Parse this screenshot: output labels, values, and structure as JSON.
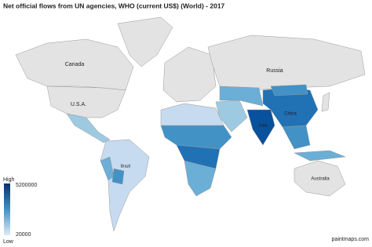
{
  "header": {
    "title": "Net official flows from UN agencies, WHO (current US$) (World) - 2017"
  },
  "labels": [
    "Canada",
    "U.S.A.",
    "Russia",
    "China",
    "Brazil",
    "Australia",
    "India"
  ],
  "legend": {
    "high": "High",
    "low": "Low",
    "max": 5200000,
    "min": 20000
  },
  "footer": {
    "credit": "paintmaps.com"
  }
}
